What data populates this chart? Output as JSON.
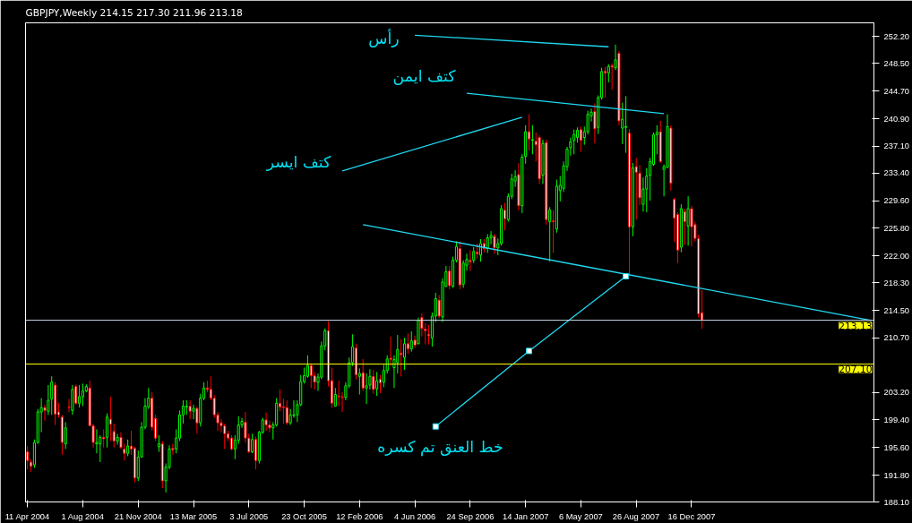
{
  "chart_data": {
    "type": "candlestick",
    "title": "GBPJPY,Weekly  214.15 217.30 211.96 213.18",
    "x": [
      "2004-04-11",
      "2004-04-18",
      "2004-04-25",
      "2004-05-02",
      "2004-05-09",
      "2004-05-16",
      "2004-05-23",
      "2004-05-30",
      "2004-06-06",
      "2004-06-13",
      "2004-06-20",
      "2004-06-27",
      "2004-07-04",
      "2004-07-11",
      "2004-07-18",
      "2004-07-25",
      "2004-08-01",
      "2004-08-08",
      "2004-08-15",
      "2004-08-22",
      "2004-08-29",
      "2004-09-05",
      "2004-09-12",
      "2004-09-19",
      "2004-09-26",
      "2004-10-03",
      "2004-10-10",
      "2004-10-17",
      "2004-10-24",
      "2004-10-31",
      "2004-11-07",
      "2004-11-14",
      "2004-11-21",
      "2004-11-28",
      "2004-12-05",
      "2004-12-12",
      "2004-12-19",
      "2004-12-26",
      "2005-01-02",
      "2005-01-09",
      "2005-01-16",
      "2005-01-23",
      "2005-01-30",
      "2005-02-06",
      "2005-02-13",
      "2005-02-20",
      "2005-02-27",
      "2005-03-06",
      "2005-03-13",
      "2005-03-20",
      "2005-03-27",
      "2005-04-03",
      "2005-04-10",
      "2005-04-17",
      "2005-04-24",
      "2005-05-01",
      "2005-05-08",
      "2005-05-15",
      "2005-05-22",
      "2005-05-29",
      "2005-06-05",
      "2005-06-12",
      "2005-06-19",
      "2005-06-26",
      "2005-07-03",
      "2005-07-10",
      "2005-07-17",
      "2005-07-24",
      "2005-07-31",
      "2005-08-07",
      "2005-08-14",
      "2005-08-21",
      "2005-08-28",
      "2005-09-04",
      "2005-09-11",
      "2005-09-18",
      "2005-09-25",
      "2005-10-02",
      "2005-10-09",
      "2005-10-16",
      "2005-10-23",
      "2005-10-30",
      "2005-11-06",
      "2005-11-13",
      "2005-11-20",
      "2005-11-27",
      "2005-12-04",
      "2005-12-11",
      "2005-12-18",
      "2005-12-25",
      "2006-01-01",
      "2006-01-08",
      "2006-01-15",
      "2006-01-22",
      "2006-01-29",
      "2006-02-05",
      "2006-02-12",
      "2006-02-19",
      "2006-02-26",
      "2006-03-05",
      "2006-03-12",
      "2006-03-19",
      "2006-03-26",
      "2006-04-02",
      "2006-04-09",
      "2006-04-16",
      "2006-04-23",
      "2006-04-30",
      "2006-05-07",
      "2006-05-14",
      "2006-05-21",
      "2006-05-28",
      "2006-06-04",
      "2006-06-11",
      "2006-06-18",
      "2006-06-25",
      "2006-07-02",
      "2006-07-09",
      "2006-07-16",
      "2006-07-23",
      "2006-07-30",
      "2006-08-06",
      "2006-08-13",
      "2006-08-20",
      "2006-08-27",
      "2006-09-03",
      "2006-09-10",
      "2006-09-17",
      "2006-09-24",
      "2006-10-01",
      "2006-10-08",
      "2006-10-15",
      "2006-10-22",
      "2006-10-29",
      "2006-11-05",
      "2006-11-12",
      "2006-11-19",
      "2006-11-26",
      "2006-12-03",
      "2006-12-10",
      "2006-12-17",
      "2006-12-24",
      "2006-12-31",
      "2007-01-07",
      "2007-01-14",
      "2007-01-21",
      "2007-01-28",
      "2007-02-04",
      "2007-02-11",
      "2007-02-18",
      "2007-02-25",
      "2007-03-04",
      "2007-03-11",
      "2007-03-18",
      "2007-03-25",
      "2007-04-01",
      "2007-04-08",
      "2007-04-15",
      "2007-04-22",
      "2007-04-29",
      "2007-05-06",
      "2007-05-13",
      "2007-05-20",
      "2007-05-27",
      "2007-06-03",
      "2007-06-10",
      "2007-06-17",
      "2007-06-24",
      "2007-07-01",
      "2007-07-08",
      "2007-07-15",
      "2007-07-22",
      "2007-07-29",
      "2007-08-05",
      "2007-08-12",
      "2007-08-19",
      "2007-08-26",
      "2007-09-02",
      "2007-09-09",
      "2007-09-16",
      "2007-09-23",
      "2007-09-30",
      "2007-10-07",
      "2007-10-14",
      "2007-10-21",
      "2007-10-28",
      "2007-11-04",
      "2007-11-11",
      "2007-11-18",
      "2007-11-25",
      "2007-12-02",
      "2007-12-09",
      "2007-12-16",
      "2007-12-23",
      "2007-12-30",
      "2008-01-06"
    ],
    "ohlc": [
      [
        195.0,
        195.8,
        192.6,
        193.8
      ],
      [
        193.6,
        194.0,
        192.2,
        193.0
      ],
      [
        193.2,
        196.7,
        192.8,
        196.3
      ],
      [
        196.3,
        200.9,
        196.1,
        200.5
      ],
      [
        200.5,
        202.4,
        197.7,
        201.1
      ],
      [
        201.1,
        201.5,
        199.3,
        200.7
      ],
      [
        200.6,
        204.2,
        200.1,
        202.1
      ],
      [
        202.3,
        205.4,
        200.1,
        204.6
      ],
      [
        204.2,
        204.6,
        198.7,
        200.2
      ],
      [
        200.5,
        201.7,
        199.7,
        200.1
      ],
      [
        199.8,
        200.1,
        194.6,
        196.3
      ],
      [
        196.1,
        199.1,
        195.4,
        198.3
      ],
      [
        201.2,
        202.3,
        200.5,
        201.1
      ],
      [
        200.7,
        204.2,
        200.1,
        203.6
      ],
      [
        204.0,
        204.3,
        201.5,
        201.7
      ],
      [
        201.7,
        204.2,
        201.1,
        202.6
      ],
      [
        202.6,
        204.4,
        201.3,
        203.4
      ],
      [
        203.4,
        204.3,
        203.2,
        204.0
      ],
      [
        203.8,
        204.8,
        198.5,
        198.6
      ],
      [
        198.6,
        198.9,
        195.6,
        196.3
      ],
      [
        196.1,
        198.1,
        194.8,
        196.3
      ],
      [
        196.1,
        197.3,
        193.6,
        197.0
      ],
      [
        197.0,
        198.1,
        195.6,
        196.8
      ],
      [
        197.0,
        200.3,
        195.6,
        199.8
      ],
      [
        199.5,
        202.6,
        196.5,
        198.8
      ],
      [
        197.8,
        198.9,
        195.6,
        196.5
      ],
      [
        196.5,
        197.5,
        196.0,
        197.0
      ],
      [
        197.0,
        197.7,
        195.4,
        195.6
      ],
      [
        195.4,
        196.1,
        193.8,
        194.8
      ],
      [
        194.8,
        196.7,
        194.4,
        195.8
      ],
      [
        195.8,
        197.9,
        194.6,
        195.4
      ],
      [
        195.5,
        195.7,
        190.8,
        191.4
      ],
      [
        191.4,
        195.2,
        191.0,
        194.3
      ],
      [
        194.3,
        199.1,
        194.2,
        198.4
      ],
      [
        198.4,
        202.4,
        198.1,
        201.3
      ],
      [
        201.2,
        203.8,
        200.9,
        202.4
      ],
      [
        202.4,
        203.2,
        197.9,
        198.4
      ],
      [
        199.6,
        200.1,
        196.5,
        196.9
      ],
      [
        195.7,
        197.3,
        195.0,
        196.1
      ],
      [
        196.1,
        196.5,
        190.0,
        191.0
      ],
      [
        191.0,
        193.4,
        189.4,
        192.9
      ],
      [
        192.9,
        195.9,
        192.6,
        195.4
      ],
      [
        195.5,
        196.1,
        194.6,
        195.3
      ],
      [
        195.4,
        198.1,
        194.8,
        196.9
      ],
      [
        196.9,
        200.7,
        196.5,
        200.1
      ],
      [
        200.1,
        202.1,
        198.9,
        201.3
      ],
      [
        201.2,
        202.1,
        200.1,
        201.3
      ],
      [
        201.3,
        202.1,
        199.5,
        200.6
      ],
      [
        200.6,
        201.5,
        199.5,
        201.0
      ],
      [
        201.0,
        201.2,
        197.5,
        199.0
      ],
      [
        199.0,
        203.0,
        198.5,
        202.4
      ],
      [
        202.4,
        204.6,
        202.1,
        203.8
      ],
      [
        203.8,
        204.8,
        203.2,
        203.6
      ],
      [
        203.6,
        205.4,
        202.1,
        202.4
      ],
      [
        202.4,
        202.8,
        199.7,
        200.1
      ],
      [
        200.1,
        200.5,
        197.9,
        199.0
      ],
      [
        199.0,
        199.5,
        197.7,
        198.6
      ],
      [
        198.6,
        198.9,
        195.4,
        197.5
      ],
      [
        197.5,
        197.9,
        196.5,
        196.9
      ],
      [
        196.9,
        197.3,
        195.2,
        195.4
      ],
      [
        195.4,
        197.3,
        194.0,
        196.6
      ],
      [
        196.6,
        199.9,
        196.1,
        198.7
      ],
      [
        198.7,
        199.7,
        198.3,
        199.2
      ],
      [
        199.1,
        200.5,
        196.3,
        196.9
      ],
      [
        196.9,
        197.5,
        194.8,
        195.0
      ],
      [
        195.0,
        197.5,
        194.8,
        196.7
      ],
      [
        196.7,
        197.1,
        192.6,
        193.8
      ],
      [
        193.8,
        197.9,
        193.4,
        197.7
      ],
      [
        197.7,
        199.7,
        197.5,
        199.4
      ],
      [
        199.4,
        200.4,
        197.9,
        198.7
      ],
      [
        198.7,
        199.3,
        197.7,
        198.3
      ],
      [
        198.3,
        199.1,
        196.7,
        198.7
      ],
      [
        198.7,
        202.4,
        198.5,
        201.7
      ],
      [
        201.7,
        203.6,
        200.6,
        201.2
      ],
      [
        201.2,
        202.3,
        198.9,
        201.1
      ],
      [
        201.1,
        202.1,
        198.7,
        199.0
      ],
      [
        199.0,
        200.9,
        198.7,
        200.1
      ],
      [
        200.0,
        202.1,
        199.7,
        200.1
      ],
      [
        200.1,
        202.1,
        199.1,
        201.5
      ],
      [
        201.5,
        205.6,
        201.3,
        204.7
      ],
      [
        204.7,
        206.6,
        204.4,
        205.5
      ],
      [
        205.4,
        208.3,
        205.2,
        206.9
      ],
      [
        206.9,
        207.2,
        203.8,
        205.5
      ],
      [
        205.5,
        206.0,
        203.6,
        204.6
      ],
      [
        204.6,
        205.8,
        203.4,
        205.3
      ],
      [
        205.3,
        210.2,
        205.0,
        209.6
      ],
      [
        209.6,
        212.0,
        209.0,
        211.7
      ],
      [
        211.7,
        213.0,
        204.0,
        204.8
      ],
      [
        204.8,
        206.6,
        201.1,
        201.7
      ],
      [
        201.3,
        203.8,
        201.3,
        202.9
      ],
      [
        202.7,
        204.8,
        201.3,
        202.6
      ],
      [
        202.6,
        203.2,
        200.5,
        202.5
      ],
      [
        202.5,
        204.6,
        202.1,
        204.1
      ],
      [
        204.1,
        208.0,
        203.8,
        207.3
      ],
      [
        207.3,
        211.2,
        206.8,
        209.5
      ],
      [
        209.3,
        209.9,
        205.0,
        205.6
      ],
      [
        205.4,
        206.5,
        202.9,
        205.8
      ],
      [
        205.9,
        207.8,
        203.4,
        203.8
      ],
      [
        203.8,
        205.8,
        201.6,
        204.1
      ],
      [
        204.2,
        206.4,
        203.6,
        205.4
      ],
      [
        205.4,
        206.3,
        203.0,
        203.6
      ],
      [
        203.7,
        206.0,
        202.7,
        204.8
      ],
      [
        205.0,
        205.6,
        203.1,
        204.5
      ],
      [
        204.6,
        207.0,
        203.9,
        206.2
      ],
      [
        206.2,
        208.3,
        205.8,
        207.8
      ],
      [
        207.9,
        210.9,
        206.8,
        207.7
      ],
      [
        206.6,
        208.3,
        203.8,
        207.7
      ],
      [
        207.3,
        211.1,
        205.8,
        209.1
      ],
      [
        208.6,
        210.5,
        205.4,
        208.4
      ],
      [
        208.0,
        210.7,
        206.3,
        209.9
      ],
      [
        209.9,
        211.3,
        208.5,
        209.2
      ],
      [
        209.2,
        211.6,
        208.8,
        210.3
      ],
      [
        210.4,
        211.0,
        209.3,
        209.7
      ],
      [
        209.9,
        213.5,
        209.8,
        213.1
      ],
      [
        213.5,
        214.1,
        210.9,
        212.0
      ],
      [
        211.9,
        212.7,
        209.8,
        211.7
      ],
      [
        211.2,
        212.5,
        209.8,
        211.0
      ],
      [
        210.7,
        214.2,
        209.5,
        213.7
      ],
      [
        213.7,
        216.9,
        212.9,
        216.1
      ],
      [
        215.9,
        216.6,
        213.4,
        213.7
      ],
      [
        213.6,
        218.9,
        212.9,
        218.4
      ],
      [
        217.8,
        220.6,
        217.7,
        219.8
      ],
      [
        219.9,
        220.6,
        217.4,
        217.9
      ],
      [
        217.8,
        221.9,
        217.6,
        221.4
      ],
      [
        221.4,
        224.0,
        221.1,
        223.3
      ],
      [
        223.0,
        224.0,
        217.4,
        218.0
      ],
      [
        218.1,
        221.4,
        217.6,
        221.0
      ],
      [
        220.7,
        222.3,
        220.0,
        221.5
      ],
      [
        221.4,
        222.8,
        219.9,
        221.2
      ],
      [
        221.4,
        223.2,
        221.0,
        222.6
      ],
      [
        222.5,
        223.7,
        221.6,
        222.3
      ],
      [
        222.1,
        224.3,
        221.2,
        223.7
      ],
      [
        223.7,
        224.3,
        222.5,
        223.0
      ],
      [
        223.0,
        225.0,
        222.4,
        224.5
      ],
      [
        224.5,
        225.4,
        223.6,
        224.8
      ],
      [
        224.7,
        225.0,
        222.3,
        223.1
      ],
      [
        223.1,
        224.4,
        222.1,
        223.7
      ],
      [
        223.7,
        229.0,
        223.4,
        228.5
      ],
      [
        228.3,
        229.3,
        225.5,
        227.1
      ],
      [
        227.0,
        230.6,
        226.7,
        230.2
      ],
      [
        230.2,
        233.3,
        229.8,
        232.6
      ],
      [
        232.3,
        233.8,
        231.5,
        232.9
      ],
      [
        233.2,
        234.8,
        228.3,
        228.9
      ],
      [
        228.9,
        236.0,
        227.9,
        235.6
      ],
      [
        235.7,
        240.0,
        234.7,
        239.1
      ],
      [
        239.1,
        241.5,
        236.5,
        238.1
      ],
      [
        237.9,
        240.0,
        236.0,
        238.0
      ],
      [
        237.8,
        239.0,
        235.0,
        237.3
      ],
      [
        238.3,
        238.6,
        231.9,
        232.6
      ],
      [
        233.1,
        238.0,
        231.9,
        237.5
      ],
      [
        237.6,
        238.0,
        226.3,
        227.0
      ],
      [
        226.7,
        228.7,
        221.2,
        228.3
      ],
      [
        226.8,
        228.3,
        222.4,
        226.7
      ],
      [
        225.7,
        232.5,
        225.2,
        231.6
      ],
      [
        231.0,
        233.0,
        229.5,
        231.7
      ],
      [
        231.3,
        235.0,
        230.8,
        234.4
      ],
      [
        234.3,
        237.0,
        233.7,
        236.7
      ],
      [
        236.9,
        238.3,
        235.8,
        237.7
      ],
      [
        237.9,
        239.4,
        236.0,
        238.7
      ],
      [
        238.3,
        239.7,
        237.6,
        239.3
      ],
      [
        239.4,
        239.8,
        236.3,
        237.9
      ],
      [
        238.3,
        239.8,
        237.3,
        239.1
      ],
      [
        239.1,
        242.0,
        238.7,
        241.5
      ],
      [
        241.3,
        242.3,
        240.5,
        241.8
      ],
      [
        241.9,
        243.0,
        237.5,
        239.5
      ],
      [
        239.7,
        244.1,
        238.8,
        243.8
      ],
      [
        243.8,
        247.9,
        243.5,
        247.4
      ],
      [
        247.4,
        248.0,
        243.8,
        247.2
      ],
      [
        247.2,
        248.4,
        245.9,
        248.1
      ],
      [
        248.2,
        248.5,
        244.9,
        248.0
      ],
      [
        247.9,
        251.1,
        247.6,
        249.0
      ],
      [
        249.9,
        250.2,
        240.0,
        240.6
      ],
      [
        239.6,
        243.1,
        237.4,
        240.8
      ],
      [
        239.7,
        244.0,
        236.2,
        239.8
      ],
      [
        238.9,
        239.5,
        219.3,
        226.0
      ],
      [
        226.0,
        234.8,
        224.7,
        234.1
      ],
      [
        234.3,
        235.5,
        227.0,
        233.5
      ],
      [
        233.4,
        234.5,
        229.0,
        230.0
      ],
      [
        229.1,
        232.8,
        228.1,
        231.2
      ],
      [
        231.2,
        234.1,
        228.0,
        233.0
      ],
      [
        233.1,
        235.5,
        229.6,
        235.0
      ],
      [
        234.6,
        239.0,
        234.4,
        238.7
      ],
      [
        238.7,
        240.0,
        236.0,
        239.0
      ],
      [
        239.1,
        240.6,
        234.8,
        235.0
      ],
      [
        233.9,
        234.6,
        230.2,
        234.3
      ],
      [
        234.2,
        241.5,
        234.1,
        239.8
      ],
      [
        239.6,
        240.0,
        231.0,
        232.0
      ],
      [
        229.8,
        230.0,
        223.9,
        227.2
      ],
      [
        227.7,
        228.0,
        221.0,
        222.8
      ],
      [
        223.2,
        229.1,
        222.5,
        228.5
      ],
      [
        228.1,
        228.5,
        223.5,
        226.7
      ],
      [
        226.1,
        230.2,
        223.4,
        228.5
      ],
      [
        228.5,
        228.9,
        223.3,
        226.0
      ],
      [
        226.3,
        226.7,
        224.0,
        224.4
      ],
      [
        224.4,
        224.9,
        213.5,
        214.0
      ],
      [
        214.15,
        217.3,
        211.96,
        213.18
      ]
    ],
    "xlim": [
      "2004-04-07",
      "2008-12-19"
    ],
    "ylim": [
      188.1,
      254.1
    ],
    "xticks": [
      {
        "value": "2004-04-11",
        "label": "11 Apr 2004"
      },
      {
        "value": "2004-08-01",
        "label": "1 Aug 2004"
      },
      {
        "value": "2004-11-21",
        "label": "21 Nov 2004"
      },
      {
        "value": "2005-03-13",
        "label": "13 Mar 2005"
      },
      {
        "value": "2005-07-03",
        "label": "3 Jul 2005"
      },
      {
        "value": "2005-10-23",
        "label": "23 Oct 2005"
      },
      {
        "value": "2006-02-12",
        "label": "12 Feb 2006"
      },
      {
        "value": "2006-06-04",
        "label": "4 Jun 2006"
      },
      {
        "value": "2006-09-24",
        "label": "24 Sep 2006"
      },
      {
        "value": "2007-01-14",
        "label": "14 Jan 2007"
      },
      {
        "value": "2007-05-06",
        "label": "6 May 2007"
      },
      {
        "value": "2007-08-26",
        "label": "26 Aug 2007"
      },
      {
        "value": "2007-12-16",
        "label": "16 Dec 2007"
      }
    ],
    "yticks": [
      {
        "value": 188.1,
        "label": "188.10"
      },
      {
        "value": 191.8,
        "label": "191.80"
      },
      {
        "value": 195.6,
        "label": "195.60"
      },
      {
        "value": 199.4,
        "label": "199.40"
      },
      {
        "value": 203.2,
        "label": "203.20"
      },
      {
        "value": 210.7,
        "label": "210.70"
      },
      {
        "value": 214.5,
        "label": "214.50"
      },
      {
        "value": 218.3,
        "label": "218.30"
      },
      {
        "value": 222.0,
        "label": "222.00"
      },
      {
        "value": 225.8,
        "label": "225.80"
      },
      {
        "value": 229.6,
        "label": "229.60"
      },
      {
        "value": 233.4,
        "label": "233.40"
      },
      {
        "value": 237.1,
        "label": "237.10"
      },
      {
        "value": 240.9,
        "label": "240.90"
      },
      {
        "value": 244.7,
        "label": "244.70"
      },
      {
        "value": 248.5,
        "label": "248.50"
      },
      {
        "value": 252.2,
        "label": "252.20"
      }
    ],
    "series": [
      {
        "type": "line",
        "color": "#20d8f0",
        "x": [
          "2006-02-19",
          "2008-12-14"
        ],
        "values": [
          226.3,
          213.1
        ]
      },
      {
        "type": "line",
        "color": "#20d8f0",
        "x": [
          "2006-01-08",
          "2007-01-07"
        ],
        "values": [
          233.7,
          241.1
        ]
      },
      {
        "type": "line",
        "color": "#20d8f0",
        "x": [
          "2006-09-17",
          "2007-10-21"
        ],
        "values": [
          244.4,
          241.6
        ]
      },
      {
        "type": "line",
        "color": "#20d8f0",
        "x": [
          "2006-06-04",
          "2007-07-01"
        ],
        "values": [
          252.4,
          250.8
        ]
      },
      {
        "type": "line",
        "color": "#20d8f0",
        "marker": "square",
        "x": [
          "2006-07-16",
          "2007-01-21",
          "2007-08-05"
        ],
        "values": [
          198.5,
          208.9,
          219.2
        ]
      }
    ],
    "ref_lines": [
      {
        "axis": "y",
        "value": 213.13,
        "label": "213.13",
        "color": "#c8dcf0"
      },
      {
        "axis": "y",
        "value": 207.1,
        "label": "207.10",
        "color": "#ffff00"
      }
    ],
    "annotations": [
      "رأس",
      "كتف ايمن",
      "كتف ايسر",
      "خط العنق تم كسره"
    ]
  }
}
